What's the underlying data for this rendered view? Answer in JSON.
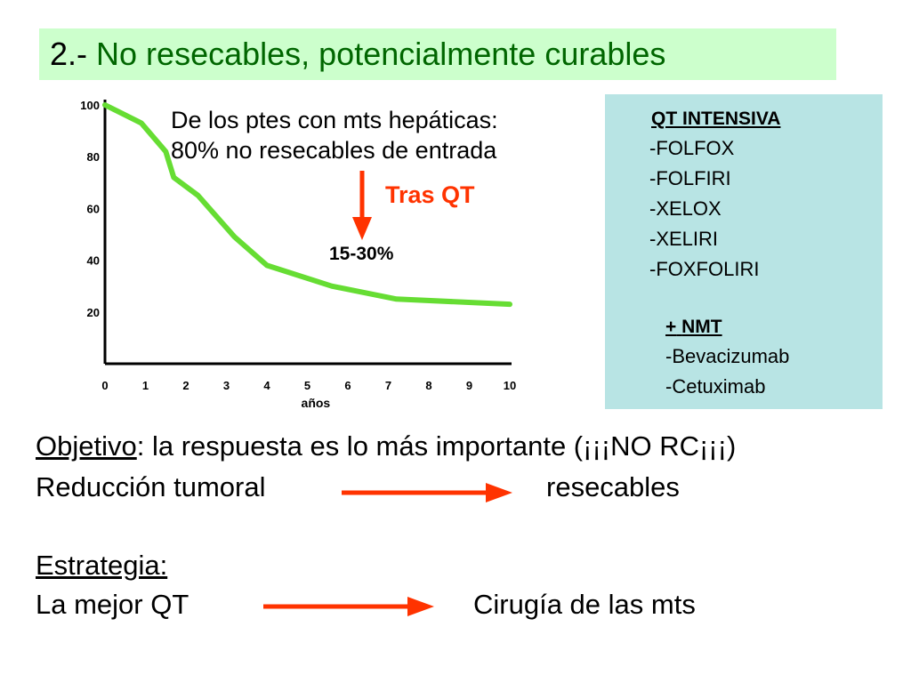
{
  "title": {
    "number": "2.-",
    "text": "No resecables, potencialmente curables"
  },
  "chart_data": {
    "type": "line",
    "title": "",
    "xlabel": "años",
    "ylabel": "",
    "xlim": [
      0,
      10
    ],
    "ylim": [
      0,
      100
    ],
    "x_ticks": [
      0,
      1,
      2,
      3,
      4,
      5,
      6,
      7,
      8,
      9,
      10
    ],
    "y_ticks": [
      20,
      40,
      60,
      80,
      100
    ],
    "grid": false,
    "legend": "none",
    "series": [
      {
        "x": [
          0,
          0.9,
          1.5,
          1.7,
          2.3,
          3.2,
          4.0,
          5.6,
          7.2,
          10.0
        ],
        "y": [
          100,
          93,
          82,
          72,
          65,
          49,
          38,
          30,
          25,
          23
        ],
        "color": "#66dd33"
      }
    ]
  },
  "annotations": {
    "line1": "De los ptes con mts hepáticas:",
    "line2": "80% no resecables de entrada",
    "tras_qt": "Tras QT",
    "percent": "15-30%",
    "arrow_color": "#ff3300"
  },
  "qt_box": {
    "heading": "QT INTENSIVA",
    "items": [
      "-FOLFOX",
      "-FOLFIRI",
      "-XELOX",
      "-XELIRI",
      "-FOXFOLIRI"
    ],
    "nmt_plus": "+",
    "nmt_heading": "NMT",
    "nmt_items": [
      "-Bevacizumab",
      "-Cetuximab"
    ]
  },
  "body": {
    "objective_label": "Objetivo",
    "objective_rest": ": la respuesta es lo más importante (¡¡¡NO RC¡¡¡)",
    "reduction_left": "Reducción tumoral",
    "reduction_right": "resecables",
    "strategy_label": "Estrategia:",
    "strategy_left": "La mejor QT",
    "strategy_right": "Cirugía de las mts"
  }
}
